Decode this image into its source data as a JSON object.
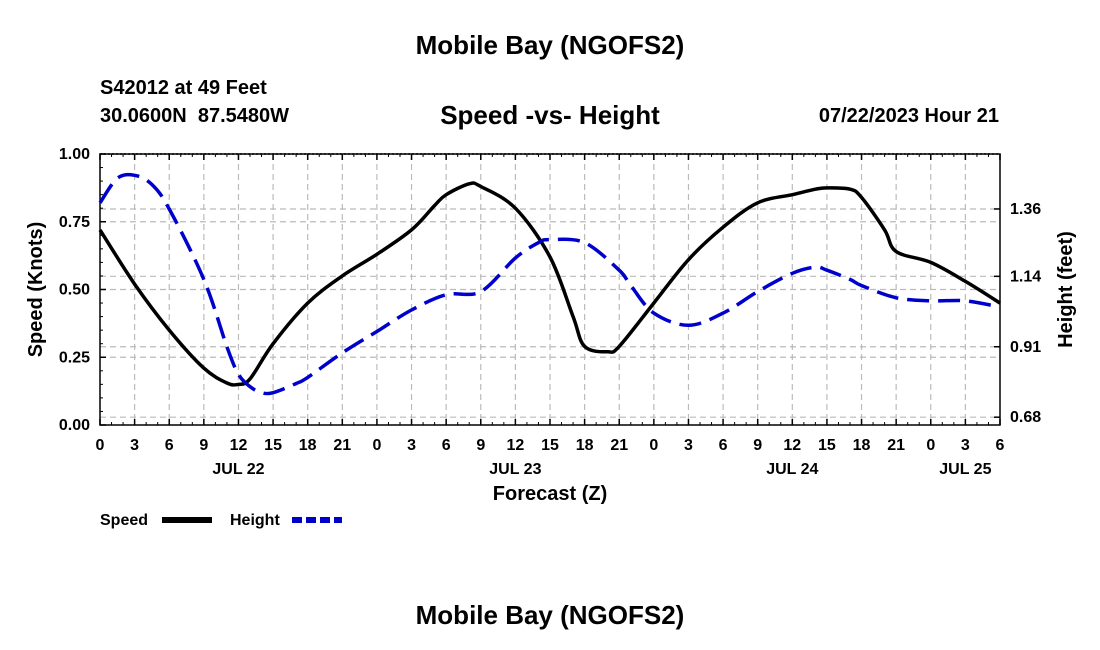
{
  "header": {
    "title": "Mobile Bay (NGOFS2)",
    "station": "S42012 at 49 Feet",
    "coords": "30.0600N  87.5480W",
    "subtitle": "Speed -vs- Height",
    "datetime": "07/22/2023 Hour 21"
  },
  "footer": {
    "title": "Mobile Bay (NGOFS2)"
  },
  "legend": [
    {
      "label": "Speed",
      "color": "#000000",
      "dashed": false
    },
    {
      "label": "Height",
      "color": "#0000cc",
      "dashed": true
    }
  ],
  "chart_data": {
    "type": "line",
    "title": "Speed -vs- Height",
    "xlabel": "Forecast (Z)",
    "ylabel": "Speed (Knots)",
    "y2label": "Height (feet)",
    "xlim": [
      0,
      78
    ],
    "ylim": [
      0,
      1
    ],
    "y2lim": [
      0.6545,
      1.5395
    ],
    "xticks": [
      0,
      3,
      6,
      9,
      12,
      15,
      18,
      21,
      24,
      27,
      30,
      33,
      36,
      39,
      42,
      45,
      48,
      51,
      54,
      57,
      60,
      63,
      66,
      69,
      72,
      75,
      78
    ],
    "xtick_labels": [
      "0",
      "3",
      "6",
      "9",
      "12",
      "15",
      "18",
      "21",
      "0",
      "3",
      "6",
      "9",
      "12",
      "15",
      "18",
      "21",
      "0",
      "3",
      "6",
      "9",
      "12",
      "15",
      "18",
      "21",
      "0",
      "3",
      "6"
    ],
    "yticks": [
      0,
      0.25,
      0.5,
      0.75,
      1.0
    ],
    "ytick_labels": [
      "0.00",
      "0.25",
      "0.50",
      "0.75",
      "1.00"
    ],
    "y2ticks": [
      0.68,
      0.91,
      1.14,
      1.36
    ],
    "y2tick_labels": [
      "0.68",
      "0.91",
      "1.14",
      "1.36"
    ],
    "day_labels": [
      {
        "x": 12,
        "label": "JUL 22"
      },
      {
        "x": 36,
        "label": "JUL 23"
      },
      {
        "x": 60,
        "label": "JUL 24"
      },
      {
        "x": 75,
        "label": "JUL 25"
      }
    ],
    "grid": true,
    "series": [
      {
        "name": "Speed",
        "axis": "left",
        "x": [
          0,
          3,
          6,
          9,
          11,
          12,
          13,
          15,
          18,
          21,
          24,
          27,
          29,
          30,
          32,
          33,
          36,
          39,
          41,
          42,
          44,
          45,
          48,
          51,
          54,
          57,
          60,
          62,
          63,
          65,
          66,
          68,
          69,
          72,
          75,
          78
        ],
        "values": [
          0.72,
          0.52,
          0.35,
          0.21,
          0.155,
          0.15,
          0.17,
          0.3,
          0.45,
          0.55,
          0.63,
          0.72,
          0.81,
          0.85,
          0.89,
          0.88,
          0.8,
          0.62,
          0.4,
          0.29,
          0.27,
          0.29,
          0.45,
          0.61,
          0.73,
          0.82,
          0.85,
          0.87,
          0.875,
          0.87,
          0.84,
          0.72,
          0.64,
          0.6,
          0.53,
          0.45
        ]
      },
      {
        "name": "Height",
        "axis": "right",
        "x": [
          0,
          1.5,
          3,
          4.5,
          6,
          9,
          11,
          12,
          13,
          14,
          15,
          17,
          18,
          21,
          24,
          27,
          30,
          33,
          36,
          38,
          39,
          42,
          45,
          46,
          48,
          51,
          54,
          57,
          60,
          62,
          63,
          65,
          66,
          69,
          72,
          75,
          78
        ],
        "values": [
          1.38,
          1.46,
          1.47,
          1.44,
          1.36,
          1.13,
          0.91,
          0.82,
          0.78,
          0.76,
          0.76,
          0.79,
          0.81,
          0.89,
          0.96,
          1.03,
          1.08,
          1.09,
          1.2,
          1.25,
          1.26,
          1.25,
          1.16,
          1.11,
          1.02,
          0.98,
          1.02,
          1.09,
          1.15,
          1.17,
          1.16,
          1.13,
          1.11,
          1.07,
          1.06,
          1.06,
          1.04
        ]
      }
    ]
  }
}
